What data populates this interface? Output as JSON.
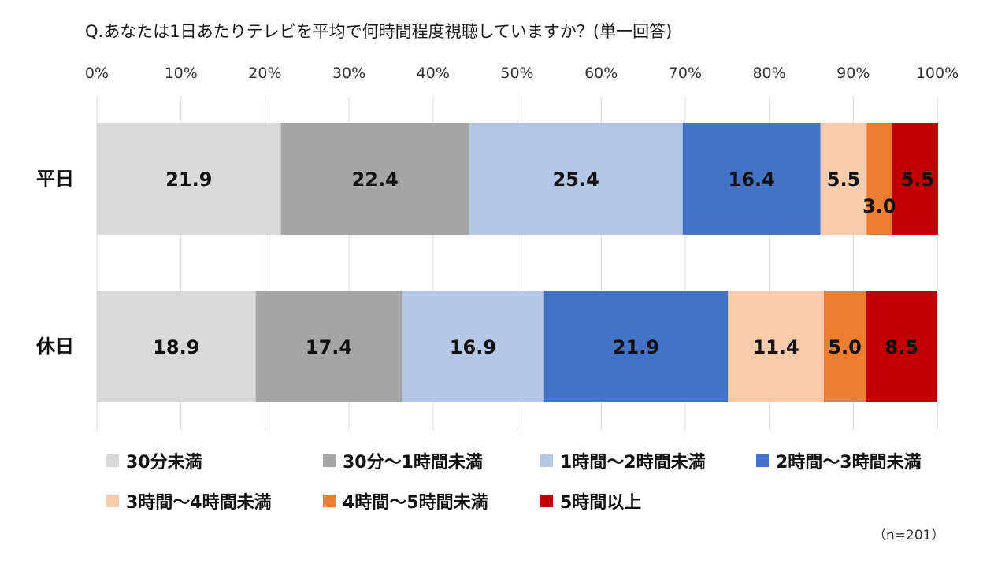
{
  "chart_data": {
    "type": "bar",
    "orientation": "horizontal",
    "stacked": true,
    "title": "Q.あなたは1日あたりテレビを平均で何時間程度視聴していますか？(単一回答)",
    "categories": [
      "平日",
      "休日"
    ],
    "series": [
      {
        "name": "30分未満",
        "color": "#d9d9d9",
        "values": [
          21.9,
          18.9
        ]
      },
      {
        "name": "30分〜1時間未満",
        "color": "#a5a5a5",
        "values": [
          22.4,
          17.4
        ]
      },
      {
        "name": "1時間〜2時間未満",
        "color": "#b4c7e7",
        "values": [
          25.4,
          16.9
        ]
      },
      {
        "name": "2時間〜3時間未満",
        "color": "#4472c4",
        "values": [
          16.4,
          21.9
        ]
      },
      {
        "name": "3時間〜4時間未満",
        "color": "#f8cbad",
        "values": [
          5.5,
          11.4
        ]
      },
      {
        "name": "4時間〜5時間未満",
        "color": "#ed7d31",
        "values": [
          3.0,
          5.0
        ]
      },
      {
        "name": "5時間以上",
        "color": "#c00000",
        "values": [
          5.5,
          8.5
        ]
      }
    ],
    "data_labels": [
      [
        "21.9",
        "22.4",
        "25.4",
        "16.4",
        "5.5",
        "3.0",
        "5.5"
      ],
      [
        "18.9",
        "17.4",
        "16.9",
        "21.9",
        "11.4",
        "5.0",
        "8.5"
      ]
    ],
    "xlim": [
      0,
      100
    ],
    "x_ticks": [
      "0%",
      "10%",
      "20%",
      "30%",
      "40%",
      "50%",
      "60%",
      "70%",
      "80%",
      "90%",
      "100%"
    ],
    "grid": true,
    "legend_position": "bottom"
  },
  "footnote": "（n=201）"
}
